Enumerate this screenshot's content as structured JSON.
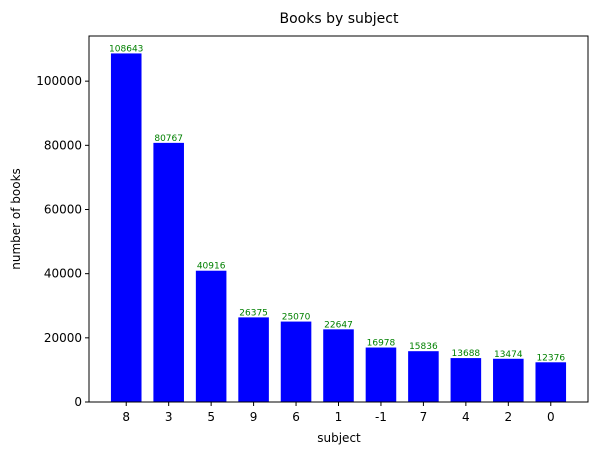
{
  "chart_data": {
    "type": "bar",
    "title": "Books by subject",
    "xlabel": "subject",
    "ylabel": "number of books",
    "categories": [
      "8",
      "3",
      "5",
      "9",
      "6",
      "1",
      "-1",
      "7",
      "4",
      "2",
      "0"
    ],
    "values": [
      108643,
      80767,
      40916,
      26375,
      25070,
      22647,
      16978,
      15836,
      13688,
      13474,
      12376
    ],
    "ylim": [
      0,
      114075
    ],
    "yticks": [
      0,
      20000,
      40000,
      60000,
      80000,
      100000
    ],
    "grid": false,
    "legend": "none",
    "colors": {
      "bar": "#0000ff",
      "data_label": "#008000",
      "axis": "#000000"
    }
  }
}
